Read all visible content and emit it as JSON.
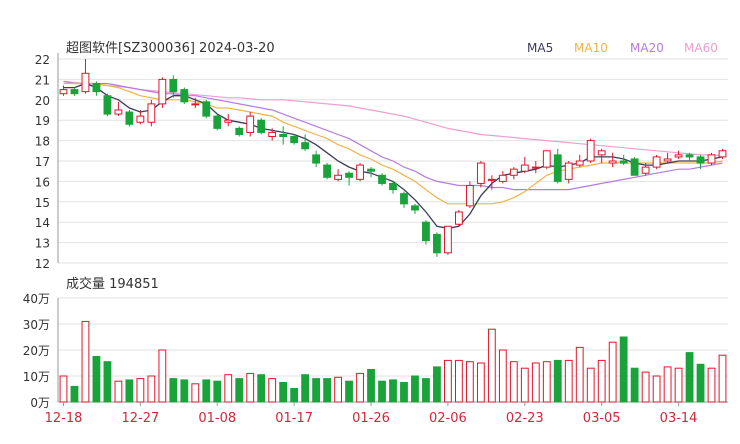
{
  "chart_data": [
    {
      "type": "candlestick",
      "title": "超图软件[SZ300036] 2024-03-20",
      "ylim": [
        12,
        22
      ],
      "y_ticks": [
        "22",
        "21",
        "20",
        "19",
        "18",
        "17",
        "16",
        "15",
        "14",
        "13",
        "12"
      ],
      "legend": [
        "MA5",
        "MA10",
        "MA20",
        "MA60"
      ],
      "legend_colors": [
        "#3b3b5b",
        "#f0b34a",
        "#b67be0",
        "#ee9ed0"
      ],
      "up_color": "#e0162b",
      "down_color": "#1aa33b",
      "candles": [
        [
          20.3,
          20.5,
          20.7,
          20.2
        ],
        [
          20.5,
          20.3,
          20.6,
          20.2
        ],
        [
          20.4,
          21.3,
          22.0,
          20.3
        ],
        [
          20.8,
          20.4,
          20.9,
          20.2
        ],
        [
          20.2,
          19.3,
          20.3,
          19.2
        ],
        [
          19.3,
          19.5,
          19.9,
          19.2
        ],
        [
          19.4,
          18.8,
          19.5,
          18.7
        ],
        [
          18.9,
          19.2,
          19.5,
          18.8
        ],
        [
          18.9,
          19.8,
          20.0,
          18.7
        ],
        [
          19.8,
          21.0,
          21.1,
          19.6
        ],
        [
          21.0,
          20.4,
          21.2,
          20.1
        ],
        [
          20.5,
          19.9,
          20.6,
          19.8
        ],
        [
          19.8,
          19.8,
          20.1,
          19.6
        ],
        [
          19.9,
          19.2,
          20.0,
          19.1
        ],
        [
          19.2,
          18.6,
          19.3,
          18.5
        ],
        [
          18.9,
          19.0,
          19.3,
          18.7
        ],
        [
          18.6,
          18.3,
          18.7,
          18.2
        ],
        [
          18.4,
          19.2,
          19.4,
          18.2
        ],
        [
          19.0,
          18.4,
          19.1,
          18.3
        ],
        [
          18.2,
          18.4,
          18.6,
          18.0
        ],
        [
          18.3,
          18.2,
          18.7,
          17.8
        ],
        [
          18.2,
          17.9,
          18.3,
          17.8
        ],
        [
          17.9,
          17.6,
          18.3,
          17.5
        ],
        [
          17.3,
          16.9,
          17.5,
          16.7
        ],
        [
          16.8,
          16.2,
          16.9,
          16.1
        ],
        [
          16.1,
          16.3,
          16.6,
          16.0
        ],
        [
          16.4,
          16.2,
          16.5,
          15.8
        ],
        [
          16.1,
          16.8,
          16.9,
          16.0
        ],
        [
          16.6,
          16.5,
          16.7,
          16.2
        ],
        [
          16.3,
          15.9,
          16.4,
          15.8
        ],
        [
          15.9,
          15.6,
          16.0,
          15.4
        ],
        [
          15.4,
          14.9,
          15.5,
          14.7
        ],
        [
          14.8,
          14.6,
          14.9,
          14.4
        ],
        [
          14.0,
          13.1,
          14.1,
          12.9
        ],
        [
          13.4,
          12.5,
          13.5,
          12.3
        ],
        [
          12.5,
          13.8,
          13.8,
          12.4
        ],
        [
          13.9,
          14.5,
          14.6,
          13.8
        ],
        [
          14.8,
          15.8,
          16.0,
          14.7
        ],
        [
          15.9,
          16.9,
          17.0,
          15.7
        ],
        [
          16.1,
          16.1,
          16.3,
          15.6
        ],
        [
          16.0,
          16.3,
          16.5,
          15.9
        ],
        [
          16.3,
          16.6,
          16.7,
          16.1
        ],
        [
          16.5,
          16.8,
          17.2,
          16.4
        ],
        [
          16.7,
          16.7,
          17.0,
          16.4
        ],
        [
          16.7,
          17.5,
          17.5,
          16.6
        ],
        [
          17.3,
          16.0,
          17.6,
          15.9
        ],
        [
          16.1,
          16.9,
          17.0,
          15.9
        ],
        [
          16.8,
          17.0,
          17.3,
          16.7
        ],
        [
          17.0,
          18.0,
          18.1,
          16.9
        ],
        [
          17.3,
          17.5,
          17.6,
          16.9
        ],
        [
          16.9,
          17.0,
          17.4,
          16.7
        ],
        [
          17.0,
          16.9,
          17.3,
          16.8
        ],
        [
          17.1,
          16.3,
          17.2,
          16.3
        ],
        [
          16.4,
          16.7,
          16.9,
          16.3
        ],
        [
          16.7,
          17.2,
          17.3,
          16.6
        ],
        [
          17.0,
          17.1,
          17.4,
          16.9
        ],
        [
          17.2,
          17.3,
          17.5,
          17.1
        ],
        [
          17.3,
          17.2,
          17.4,
          17.0
        ],
        [
          17.2,
          16.9,
          17.3,
          16.6
        ],
        [
          16.9,
          17.3,
          17.4,
          16.8
        ],
        [
          17.2,
          17.5,
          17.6,
          17.1
        ]
      ],
      "ma5": [
        20.6,
        20.6,
        20.8,
        20.6,
        20.2,
        20.0,
        19.6,
        19.4,
        19.5,
        19.9,
        20.2,
        20.2,
        20.0,
        19.8,
        19.3,
        19.0,
        18.9,
        18.8,
        18.6,
        18.5,
        18.4,
        18.3,
        18.1,
        17.8,
        17.4,
        17.0,
        16.7,
        16.5,
        16.4,
        16.2,
        16.0,
        15.6,
        15.1,
        14.5,
        13.8,
        13.7,
        13.8,
        14.4,
        15.3,
        15.9,
        16.3,
        16.4,
        16.5,
        16.6,
        16.8,
        16.7,
        16.8,
        16.9,
        17.2,
        17.2,
        17.2,
        17.1,
        16.9,
        16.8,
        16.8,
        16.9,
        17.0,
        17.0,
        17.0,
        17.1,
        17.2
      ],
      "ma10": [
        20.8,
        20.8,
        20.8,
        20.8,
        20.7,
        20.6,
        20.4,
        20.2,
        20.1,
        20.0,
        20.0,
        20.0,
        19.9,
        19.8,
        19.6,
        19.6,
        19.5,
        19.4,
        19.3,
        19.2,
        18.9,
        18.7,
        18.5,
        18.3,
        18.1,
        17.8,
        17.6,
        17.3,
        17.1,
        16.8,
        16.6,
        16.3,
        16.0,
        15.6,
        15.2,
        14.9,
        14.9,
        14.9,
        14.9,
        14.9,
        15.0,
        15.2,
        15.5,
        15.9,
        16.3,
        16.5,
        16.6,
        16.7,
        16.8,
        16.9,
        16.9,
        16.9,
        16.9,
        16.9,
        16.9,
        16.9,
        16.9,
        16.9,
        16.9,
        16.9,
        17.0
      ],
      "ma20": [
        20.9,
        20.8,
        20.8,
        20.8,
        20.8,
        20.7,
        20.6,
        20.5,
        20.4,
        20.3,
        20.3,
        20.2,
        20.2,
        20.1,
        20.0,
        19.9,
        19.8,
        19.7,
        19.6,
        19.5,
        19.3,
        19.1,
        18.9,
        18.7,
        18.5,
        18.3,
        18.1,
        17.8,
        17.5,
        17.2,
        17.0,
        16.7,
        16.5,
        16.2,
        16.0,
        15.9,
        15.8,
        15.8,
        15.8,
        15.7,
        15.7,
        15.6,
        15.6,
        15.6,
        15.6,
        15.6,
        15.6,
        15.7,
        15.8,
        15.9,
        16.0,
        16.1,
        16.2,
        16.3,
        16.4,
        16.5,
        16.6,
        16.6,
        16.7,
        16.8,
        16.9
      ],
      "ma60": [
        20.9,
        20.85,
        20.8,
        20.75,
        20.7,
        20.65,
        20.6,
        20.5,
        20.45,
        20.4,
        20.35,
        20.3,
        20.25,
        20.2,
        20.15,
        20.1,
        20.1,
        20.05,
        20.0,
        20.0,
        20.0,
        19.95,
        19.9,
        19.85,
        19.8,
        19.75,
        19.7,
        19.6,
        19.5,
        19.4,
        19.3,
        19.2,
        19.05,
        18.9,
        18.75,
        18.6,
        18.5,
        18.4,
        18.3,
        18.25,
        18.2,
        18.15,
        18.1,
        18.05,
        18.0,
        17.95,
        17.9,
        17.85,
        17.8,
        17.75,
        17.7,
        17.65,
        17.6,
        17.55,
        17.5,
        17.45,
        17.4,
        17.35,
        17.3,
        17.3,
        17.25
      ]
    },
    {
      "type": "bar",
      "title": "成交量 194851",
      "unit": "万",
      "ylim": [
        0,
        40
      ],
      "y_ticks": [
        "40万",
        "30万",
        "20万",
        "10万",
        "0万"
      ],
      "x_ticks": [
        "12-18",
        "12-27",
        "01-08",
        "01-17",
        "01-26",
        "02-06",
        "02-23",
        "03-05",
        "03-14"
      ],
      "x_tick_index": [
        0,
        7,
        14,
        21,
        28,
        35,
        42,
        49,
        56
      ],
      "values": [
        10,
        6,
        31,
        17.5,
        15.5,
        8,
        8.5,
        9,
        10,
        20,
        9,
        8.5,
        7,
        8.5,
        8,
        10.5,
        9,
        11,
        10.5,
        9,
        7.5,
        5.2,
        10.5,
        9,
        9,
        9.5,
        8,
        11,
        12.5,
        8,
        8.5,
        7.5,
        10,
        9,
        13.5,
        16,
        16,
        15.5,
        15,
        28,
        20,
        15.5,
        13,
        15,
        15.5,
        16,
        16,
        21,
        13,
        16,
        23,
        25,
        13,
        11.5,
        10,
        13.5,
        13,
        19,
        14.5,
        13,
        18
      ]
    }
  ]
}
